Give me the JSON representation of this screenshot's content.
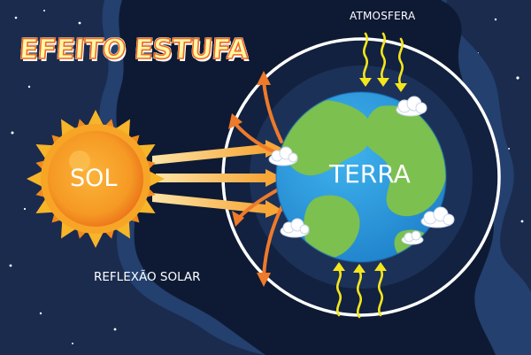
{
  "title": "EFEITO ESTUFA",
  "labels": {
    "atmosphere": "ATMOSFERA",
    "sun": "SOL",
    "earth": "TERRA",
    "reflection": "REFLEXÃO SOLAR"
  },
  "icons": [
    "sun-icon",
    "earth-icon",
    "cloud-icon",
    "heat-wave-icon",
    "ray-arrow-icon",
    "star-icon"
  ],
  "colors": {
    "space": "#1b2b4d",
    "space_glow": "#23406e",
    "inner_space": "#0e1a34",
    "atmosphere_ring": "#ffffff",
    "ocean": "#2fa0e3",
    "land": "#7cc04f",
    "sun": "#f59a24",
    "sun_core": "#fbb33a",
    "rays": "#f7a637",
    "reflected_rays": "#ee7a2a",
    "heat_waves": "#f5e61c",
    "title_fill": "#fff6a8",
    "title_outline": "#ef6a1e"
  }
}
